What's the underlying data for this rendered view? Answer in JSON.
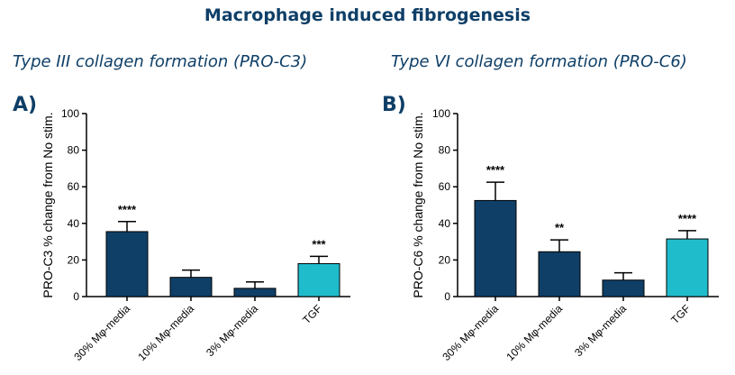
{
  "header": {
    "title": "Macrophage induced fibrogenesis"
  },
  "colors": {
    "dark_bar": "#0f3f67",
    "tgf_bar": "#1fbccc",
    "text": "#0f3f67"
  },
  "chart_data": [
    {
      "type": "bar",
      "panel": "A)",
      "title": "Type III collagen formation (PRO-C3)",
      "ylabel": "PRO-C3 % change from No stim.",
      "categories": [
        "30% Mφ-media",
        "10% Mφ-media",
        "3% Mφ-media",
        "TGF"
      ],
      "values": [
        35.5,
        10.5,
        4.5,
        18
      ],
      "errors": [
        5.5,
        4,
        3.5,
        4
      ],
      "significance": [
        "****",
        "",
        "",
        "***"
      ],
      "ylim": [
        0,
        100
      ],
      "yticks": [
        "0",
        "20",
        "40",
        "60",
        "80",
        "100"
      ]
    },
    {
      "type": "bar",
      "panel": "B)",
      "title": "Type VI collagen formation (PRO-C6)",
      "ylabel": "PRO-C6 % change from No stim.",
      "categories": [
        "30% Mφ-media",
        "10% Mφ-media",
        "3% Mφ-media",
        "TGF"
      ],
      "values": [
        52.5,
        24.5,
        9,
        31.5
      ],
      "errors": [
        10,
        6.5,
        4,
        4.5
      ],
      "significance": [
        "****",
        "**",
        "",
        "****"
      ],
      "ylim": [
        0,
        100
      ],
      "yticks": [
        "0",
        "20",
        "40",
        "60",
        "80",
        "100"
      ]
    }
  ]
}
